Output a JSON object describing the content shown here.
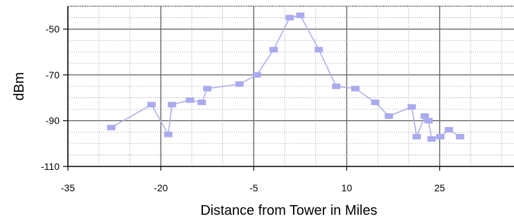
{
  "chart_data": {
    "type": "line",
    "xlabel": "Distance from Tower in Miles",
    "ylabel": "dBm",
    "xlim": [
      -35,
      37
    ],
    "ylim": [
      -110,
      -40
    ],
    "x_ticks": [
      -35,
      -20,
      -5,
      10,
      25
    ],
    "y_ticks": [
      -110,
      -90,
      -70,
      -50
    ],
    "grid": true,
    "series_color": "#aaaaee",
    "series": [
      {
        "x": [
          -28,
          -21.5,
          -18.8,
          -18.2,
          -15.3,
          -13.4,
          -12.5,
          -7.3,
          -4.5,
          -1.8,
          0.8,
          2.5,
          5.5,
          8.3,
          11.4,
          14.6,
          16.8,
          20.5,
          21.3,
          22.6,
          23.2,
          23.7,
          25.1,
          26.5,
          28.3
        ],
        "y": [
          -93,
          -83,
          -96,
          -83,
          -81,
          -82,
          -76,
          -74,
          -70,
          -59,
          -45,
          -44,
          -59,
          -75,
          -76,
          -82,
          -88,
          -84,
          -97,
          -88,
          -90,
          -98,
          -97,
          -94,
          -97
        ]
      }
    ]
  }
}
